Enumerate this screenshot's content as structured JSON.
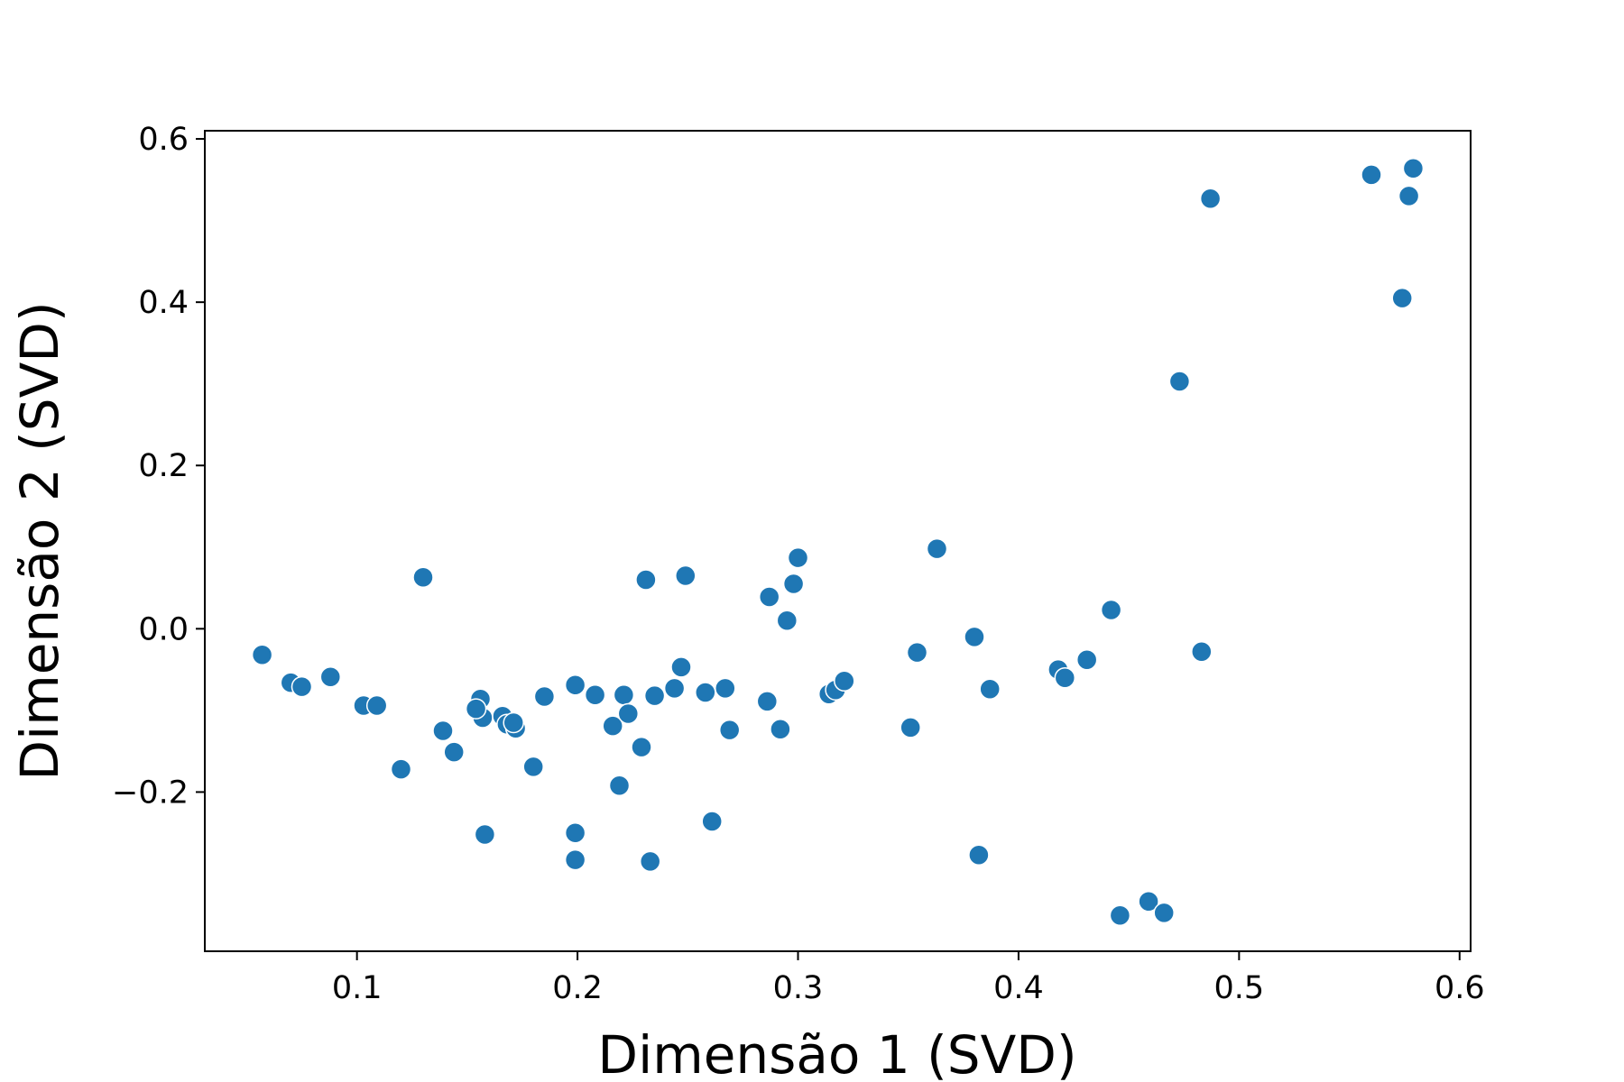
{
  "chart_data": {
    "type": "scatter",
    "title": "",
    "xlabel": "Dimensão 1 (SVD)",
    "ylabel": "Dimensão 2 (SVD)",
    "xlim": [
      0.031,
      0.605
    ],
    "ylim": [
      -0.395,
      0.61
    ],
    "xticks": [
      0.1,
      0.2,
      0.3,
      0.4,
      0.5,
      0.6
    ],
    "xtick_labels": [
      "0.1",
      "0.2",
      "0.3",
      "0.4",
      "0.5",
      "0.6"
    ],
    "yticks": [
      -0.2,
      0.0,
      0.2,
      0.4,
      0.6
    ],
    "ytick_labels": [
      "−0.2",
      "0.0",
      "0.2",
      "0.4",
      "0.6"
    ],
    "grid": false,
    "point_color": "#1f77b4",
    "points": [
      {
        "x": 0.057,
        "y": -0.032
      },
      {
        "x": 0.07,
        "y": -0.066
      },
      {
        "x": 0.075,
        "y": -0.071
      },
      {
        "x": 0.088,
        "y": -0.059
      },
      {
        "x": 0.103,
        "y": -0.094
      },
      {
        "x": 0.109,
        "y": -0.094
      },
      {
        "x": 0.12,
        "y": -0.172
      },
      {
        "x": 0.13,
        "y": 0.063
      },
      {
        "x": 0.139,
        "y": -0.125
      },
      {
        "x": 0.144,
        "y": -0.151
      },
      {
        "x": 0.156,
        "y": -0.086
      },
      {
        "x": 0.157,
        "y": -0.109
      },
      {
        "x": 0.158,
        "y": -0.252
      },
      {
        "x": 0.154,
        "y": -0.098
      },
      {
        "x": 0.166,
        "y": -0.107
      },
      {
        "x": 0.168,
        "y": -0.117
      },
      {
        "x": 0.172,
        "y": -0.122
      },
      {
        "x": 0.171,
        "y": -0.115
      },
      {
        "x": 0.18,
        "y": -0.169
      },
      {
        "x": 0.185,
        "y": -0.083
      },
      {
        "x": 0.199,
        "y": -0.069
      },
      {
        "x": 0.199,
        "y": -0.25
      },
      {
        "x": 0.199,
        "y": -0.283
      },
      {
        "x": 0.208,
        "y": -0.081
      },
      {
        "x": 0.216,
        "y": -0.119
      },
      {
        "x": 0.219,
        "y": -0.192
      },
      {
        "x": 0.221,
        "y": -0.081
      },
      {
        "x": 0.223,
        "y": -0.104
      },
      {
        "x": 0.229,
        "y": -0.145
      },
      {
        "x": 0.231,
        "y": 0.06
      },
      {
        "x": 0.233,
        "y": -0.285
      },
      {
        "x": 0.235,
        "y": -0.082
      },
      {
        "x": 0.244,
        "y": -0.073
      },
      {
        "x": 0.247,
        "y": -0.047
      },
      {
        "x": 0.249,
        "y": 0.065
      },
      {
        "x": 0.258,
        "y": -0.078
      },
      {
        "x": 0.261,
        "y": -0.236
      },
      {
        "x": 0.267,
        "y": -0.073
      },
      {
        "x": 0.269,
        "y": -0.124
      },
      {
        "x": 0.286,
        "y": -0.089
      },
      {
        "x": 0.287,
        "y": 0.039
      },
      {
        "x": 0.292,
        "y": -0.123
      },
      {
        "x": 0.295,
        "y": 0.01
      },
      {
        "x": 0.298,
        "y": 0.055
      },
      {
        "x": 0.3,
        "y": 0.087
      },
      {
        "x": 0.314,
        "y": -0.08
      },
      {
        "x": 0.317,
        "y": -0.075
      },
      {
        "x": 0.321,
        "y": -0.064
      },
      {
        "x": 0.351,
        "y": -0.121
      },
      {
        "x": 0.354,
        "y": -0.029
      },
      {
        "x": 0.363,
        "y": 0.098
      },
      {
        "x": 0.38,
        "y": -0.01
      },
      {
        "x": 0.382,
        "y": -0.277
      },
      {
        "x": 0.387,
        "y": -0.074
      },
      {
        "x": 0.418,
        "y": -0.05
      },
      {
        "x": 0.421,
        "y": -0.06
      },
      {
        "x": 0.431,
        "y": -0.038
      },
      {
        "x": 0.442,
        "y": 0.023
      },
      {
        "x": 0.446,
        "y": -0.351
      },
      {
        "x": 0.459,
        "y": -0.334
      },
      {
        "x": 0.466,
        "y": -0.348
      },
      {
        "x": 0.473,
        "y": 0.303
      },
      {
        "x": 0.483,
        "y": -0.028
      },
      {
        "x": 0.487,
        "y": 0.527
      },
      {
        "x": 0.56,
        "y": 0.556
      },
      {
        "x": 0.574,
        "y": 0.405
      },
      {
        "x": 0.577,
        "y": 0.53
      },
      {
        "x": 0.579,
        "y": 0.564
      }
    ]
  }
}
